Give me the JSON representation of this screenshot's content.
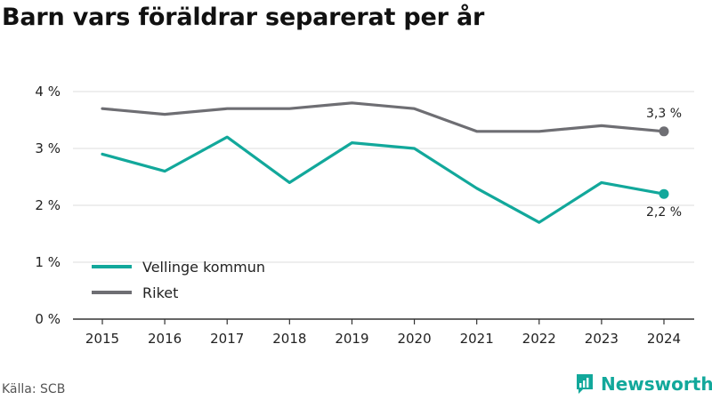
{
  "title": "Barn vars föräldrar separerat per år",
  "source": "Källa: SCB",
  "brand": {
    "name": "Newsworthy",
    "icon": "newsworthy-logo-icon",
    "color": "#12a89b"
  },
  "chart_data": {
    "type": "line",
    "x": [
      "2015",
      "2016",
      "2017",
      "2018",
      "2019",
      "2020",
      "2021",
      "2022",
      "2023",
      "2024"
    ],
    "ylim": [
      0,
      4
    ],
    "yticks": [
      0,
      1,
      2,
      3,
      4
    ],
    "ytick_labels": [
      "0 %",
      "1 %",
      "2 %",
      "3 %",
      "4 %"
    ],
    "grid": true,
    "legend_position": "bottom-left",
    "series": [
      {
        "name": "Vellinge kommun",
        "color": "#12a89b",
        "values": [
          2.9,
          2.6,
          3.2,
          2.4,
          3.1,
          3.0,
          2.3,
          1.7,
          2.4,
          2.2
        ],
        "end_label": "2,2 %"
      },
      {
        "name": "Riket",
        "color": "#6e6e73",
        "values": [
          3.7,
          3.6,
          3.7,
          3.7,
          3.8,
          3.7,
          3.3,
          3.3,
          3.4,
          3.3
        ],
        "end_label": "3,3 %"
      }
    ]
  }
}
